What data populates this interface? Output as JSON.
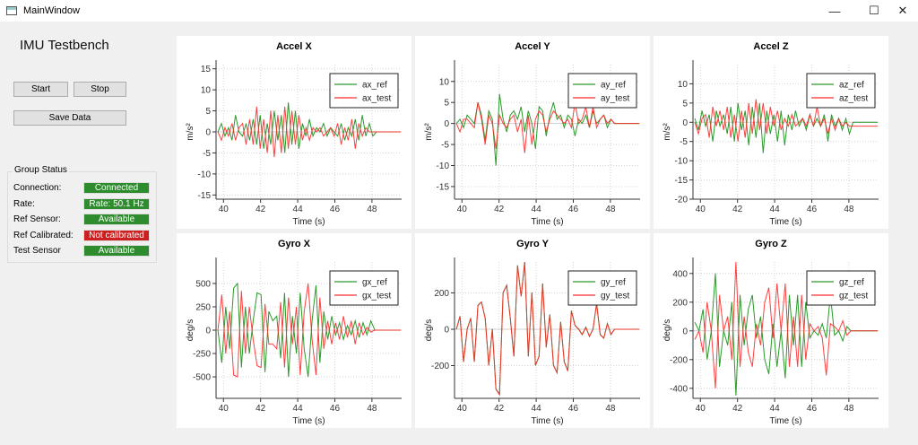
{
  "window": {
    "title": "MainWindow",
    "minimize": "—",
    "maximize": "☐",
    "close": "✕"
  },
  "app_title": "IMU Testbench",
  "buttons": {
    "start": "Start",
    "stop": "Stop",
    "save": "Save Data"
  },
  "group": {
    "title": "Group Status",
    "rows": [
      {
        "label": "Connection:",
        "value": "Connected",
        "color": "#2e8b2e"
      },
      {
        "label": "Rate:",
        "value": "Rate: 50.1 Hz",
        "color": "#2e8b2e"
      },
      {
        "label": "Ref Sensor:",
        "value": "Available",
        "color": "#2e8b2e"
      },
      {
        "label": "Ref Calibrated:",
        "value": "Not calibrated",
        "color": "#cc1f1f"
      },
      {
        "label": "Test Sensor",
        "value": "Available",
        "color": "#2e8b2e"
      }
    ]
  },
  "colors": {
    "ref": "#2a9a2a",
    "test": "#ff2a2a"
  },
  "chart_data": [
    {
      "type": "line",
      "title": "Accel X",
      "xlabel": "Time (s)",
      "ylabel": "m/s²",
      "xlim": [
        39.6,
        49.6
      ],
      "ylim": [
        -16,
        16
      ],
      "xticks": [
        40,
        42,
        44,
        46,
        48
      ],
      "yticks": [
        15,
        10,
        5,
        0,
        -5,
        -10,
        -15
      ],
      "legend": "top-right",
      "series": [
        {
          "name": "ax_ref",
          "values": [
            0,
            2,
            -1,
            1,
            -2,
            4,
            0,
            -1,
            2,
            -2,
            3,
            -3,
            4,
            -4,
            2,
            -3,
            5,
            -2,
            4,
            -5,
            7,
            -3,
            5,
            -4,
            2,
            -1,
            3,
            -1,
            1,
            0,
            2,
            -1,
            1,
            0,
            -1,
            2,
            -2,
            1,
            -1,
            3,
            -2,
            4,
            -1,
            2,
            -1,
            0,
            0,
            0,
            0,
            0
          ]
        },
        {
          "name": "ax_test",
          "values": [
            0,
            -2,
            1,
            -1,
            2,
            -2,
            1,
            2,
            -3,
            3,
            -3,
            6,
            -4,
            3,
            -5,
            5,
            -6,
            4,
            -5,
            6,
            -4,
            5,
            -3,
            4,
            -2,
            1,
            -2,
            1,
            0,
            1,
            -1,
            0,
            1,
            -1,
            2,
            -3,
            1,
            -2,
            3,
            -4,
            2,
            -1,
            1,
            0,
            0,
            0,
            0,
            0,
            0,
            0
          ]
        }
      ]
    },
    {
      "type": "line",
      "title": "Accel Y",
      "xlabel": "Time (s)",
      "ylabel": "m/s²",
      "xlim": [
        39.6,
        49.6
      ],
      "ylim": [
        -18,
        14
      ],
      "xticks": [
        40,
        42,
        44,
        46,
        48
      ],
      "yticks": [
        10,
        5,
        0,
        -5,
        -10,
        -15
      ],
      "legend": "top-right",
      "series": [
        {
          "name": "ay_ref",
          "values": [
            0,
            1,
            -1,
            2,
            1,
            0,
            5,
            2,
            -4,
            3,
            1,
            -10,
            7,
            1,
            -2,
            2,
            3,
            1,
            4,
            -2,
            3,
            0,
            -6,
            4,
            3,
            -3,
            2,
            5,
            1,
            2,
            -1,
            2,
            1,
            -3,
            1,
            0,
            2,
            -1,
            3,
            0,
            1,
            2,
            -1,
            1,
            0,
            0,
            0,
            0,
            0
          ]
        },
        {
          "name": "ay_test",
          "values": [
            0,
            -2,
            1,
            1,
            0,
            -1,
            5,
            1,
            -5,
            2,
            0,
            -6,
            2,
            0,
            -1,
            1,
            2,
            -2,
            1,
            -7,
            2,
            -5,
            1,
            3,
            2,
            -2,
            1,
            3,
            2,
            1,
            0,
            1,
            -1,
            5,
            0,
            1,
            4,
            -1,
            4,
            -1,
            1,
            2,
            0,
            1,
            0,
            0,
            0,
            0,
            0
          ]
        }
      ]
    },
    {
      "type": "line",
      "title": "Accel Z",
      "xlabel": "Time (s)",
      "ylabel": "m/s²",
      "xlim": [
        39.6,
        49.6
      ],
      "ylim": [
        -20,
        15
      ],
      "xticks": [
        40,
        42,
        44,
        46,
        48
      ],
      "yticks": [
        10,
        5,
        0,
        -5,
        -10,
        -15,
        -20
      ],
      "legend": "top-right",
      "series": [
        {
          "name": "az_ref",
          "values": [
            1,
            -2,
            3,
            -1,
            2,
            -5,
            3,
            -1,
            2,
            -3,
            4,
            -5,
            5,
            -2,
            3,
            -6,
            4,
            -4,
            5,
            -8,
            3,
            -3,
            2,
            -5,
            3,
            -6,
            2,
            -2,
            3,
            -1,
            1,
            -2,
            2,
            -1,
            1,
            -1,
            2,
            -5,
            2,
            -1,
            1,
            -2,
            1,
            -3,
            0,
            0,
            0,
            0,
            0
          ]
        },
        {
          "name": "az_test",
          "values": [
            0,
            -3,
            1,
            2,
            -4,
            4,
            -1,
            3,
            -2,
            4,
            -4,
            2,
            -5,
            3,
            -4,
            5,
            -3,
            6,
            -2,
            5,
            -3,
            4,
            -1,
            3,
            -2,
            1,
            -1,
            2,
            -1,
            0,
            1,
            -1,
            2,
            -1,
            4,
            -1,
            1,
            -3,
            1,
            -2,
            1,
            -1,
            0,
            -1,
            -1,
            -1,
            -1,
            -1,
            -1
          ]
        }
      ]
    },
    {
      "type": "line",
      "title": "Gyro X",
      "xlabel": "Time (s)",
      "ylabel": "deg/s",
      "xlim": [
        39.6,
        49.6
      ],
      "ylim": [
        -730,
        730
      ],
      "xticks": [
        40,
        42,
        44,
        46,
        48
      ],
      "yticks": [
        500,
        250,
        0,
        -250,
        -500
      ],
      "legend": "top-right",
      "series": [
        {
          "name": "gx_ref",
          "values": [
            0,
            -350,
            250,
            -200,
            450,
            500,
            -400,
            250,
            -250,
            100,
            400,
            380,
            -450,
            200,
            100,
            150,
            -300,
            400,
            -500,
            150,
            -250,
            400,
            -200,
            -500,
            100,
            480,
            -350,
            200,
            -100,
            150,
            -50,
            80,
            -100,
            50,
            -50,
            100,
            -80,
            80,
            -50,
            100,
            0,
            0,
            0,
            0,
            0
          ]
        },
        {
          "name": "gx_test",
          "values": [
            0,
            380,
            -250,
            200,
            -480,
            -500,
            420,
            -250,
            250,
            -100,
            -380,
            -400,
            280,
            -150,
            -150,
            -200,
            300,
            -400,
            350,
            -150,
            250,
            -480,
            200,
            500,
            -100,
            -480,
            350,
            -200,
            100,
            -150,
            80,
            -100,
            150,
            -80,
            100,
            -150,
            80,
            -50,
            30,
            -20,
            0,
            0,
            0,
            0,
            0
          ]
        }
      ]
    },
    {
      "type": "line",
      "title": "Gyro Y",
      "xlabel": "Time (s)",
      "ylabel": "deg/s",
      "xlim": [
        39.6,
        49.6
      ],
      "ylim": [
        -380,
        370
      ],
      "xticks": [
        40,
        42,
        44,
        46,
        48
      ],
      "yticks": [
        200,
        0,
        -200
      ],
      "legend": "top-right",
      "series": [
        {
          "name": "gy_ref",
          "values": [
            0,
            72,
            -178,
            2,
            62,
            -178,
            132,
            150,
            62,
            -198,
            2,
            -328,
            -358,
            202,
            242,
            62,
            -148,
            352,
            182,
            370,
            -148,
            202,
            -198,
            -148,
            252,
            -98,
            82,
            -198,
            -238,
            42,
            -178,
            -228,
            102,
            22,
            2,
            -28,
            12,
            -38,
            2,
            142,
            -28,
            -48,
            32,
            -28,
            0,
            0,
            0,
            0,
            0
          ]
        },
        {
          "name": "gy_test",
          "values": [
            0,
            70,
            -180,
            0,
            60,
            -180,
            130,
            150,
            60,
            -200,
            0,
            -330,
            -360,
            200,
            240,
            60,
            -150,
            350,
            180,
            370,
            -150,
            200,
            -200,
            -150,
            250,
            -100,
            80,
            -200,
            -240,
            40,
            -180,
            -230,
            100,
            20,
            0,
            -30,
            10,
            -40,
            0,
            140,
            -30,
            -50,
            30,
            -30,
            0,
            0,
            0,
            0,
            0
          ]
        }
      ]
    },
    {
      "type": "line",
      "title": "Gyro Z",
      "xlabel": "Time (s)",
      "ylabel": "deg/s",
      "xlim": [
        39.6,
        49.6
      ],
      "ylim": [
        -470,
        480
      ],
      "xticks": [
        40,
        42,
        44,
        46,
        48
      ],
      "yticks": [
        400,
        200,
        0,
        -200,
        -400
      ],
      "legend": "top-right",
      "series": [
        {
          "name": "gz_ref",
          "values": [
            60,
            0,
            150,
            -200,
            0,
            400,
            -250,
            0,
            -100,
            200,
            -450,
            250,
            -100,
            150,
            250,
            -50,
            100,
            -200,
            -300,
            50,
            -250,
            0,
            -330,
            250,
            -100,
            250,
            -250,
            200,
            -50,
            0,
            -30,
            50,
            -50,
            250,
            -30,
            0,
            -70,
            30,
            0,
            0,
            0,
            0,
            0
          ]
        },
        {
          "name": "gz_test",
          "values": [
            -60,
            0,
            -150,
            200,
            0,
            -400,
            250,
            0,
            100,
            -200,
            480,
            -250,
            100,
            -150,
            -250,
            50,
            -100,
            200,
            300,
            -50,
            330,
            0,
            330,
            -250,
            100,
            -250,
            250,
            -200,
            50,
            0,
            30,
            -50,
            -310,
            50,
            30,
            0,
            70,
            -30,
            0,
            0,
            0,
            0,
            0
          ]
        }
      ]
    }
  ]
}
